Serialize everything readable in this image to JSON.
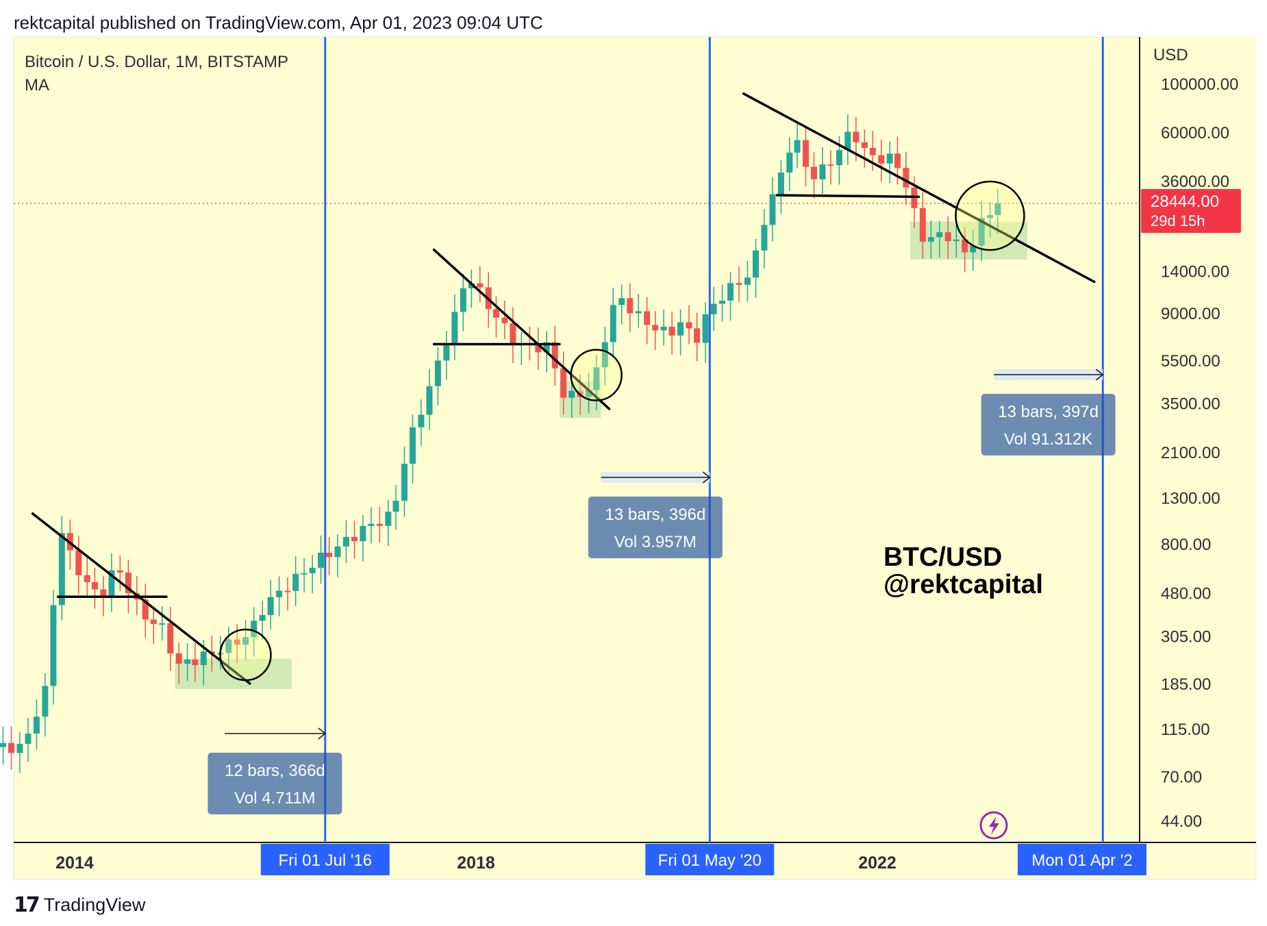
{
  "header": {
    "publish_text": "rektcapital published on TradingView.com, Apr 01, 2023 09:04 UTC"
  },
  "footer": {
    "logo_text": "17",
    "brand": "TradingView"
  },
  "colors": {
    "background": "#fffed2",
    "up": "#26a69a",
    "down": "#ef5350",
    "vline": "#2962ff",
    "range_box": "#1e4fa0",
    "price_badge": "#f23645",
    "zone": "#b9dfa4",
    "dotted": "#e45757"
  },
  "chart_data": {
    "type": "candlestick",
    "title": "Bitcoin / U.S. Dollar, 1M, BITSTAMP",
    "indicator": "MA",
    "scale": "log",
    "yunit": "USD",
    "yticks": [
      100000,
      60000,
      36000,
      14000,
      9000,
      5500,
      3500,
      2100,
      1300,
      800,
      480,
      305,
      185,
      115,
      70,
      44
    ],
    "ytick_labels": [
      "100000.00",
      "60000.00",
      "36000.00",
      "14000.00",
      "9000.00",
      "5500.00",
      "3500.00",
      "2100.00",
      "1300.00",
      "800.00",
      "480.00",
      "305.00",
      "185.00",
      "115.00",
      "70.00",
      "44.00"
    ],
    "xticks": [
      {
        "label": "2014",
        "date": "2014-01-01"
      },
      {
        "label": "2018",
        "date": "2018-01-01"
      },
      {
        "label": "2022",
        "date": "2022-01-01"
      }
    ],
    "last_price": {
      "value": 28444,
      "label": "28444.00",
      "countdown": "29d 15h"
    },
    "candles_approx_close": [
      {
        "d": "2013-04",
        "c": 95
      },
      {
        "d": "2013-07",
        "c": 95
      },
      {
        "d": "2013-08",
        "c": 125
      },
      {
        "d": "2013-10",
        "c": 190
      },
      {
        "d": "2013-11",
        "c": 1100
      },
      {
        "d": "2013-12",
        "c": 760
      },
      {
        "d": "2014-02",
        "c": 560
      },
      {
        "d": "2014-04",
        "c": 450
      },
      {
        "d": "2014-06",
        "c": 640
      },
      {
        "d": "2014-09",
        "c": 385
      },
      {
        "d": "2014-12",
        "c": 320
      },
      {
        "d": "2015-01",
        "c": 220
      },
      {
        "d": "2015-06",
        "c": 260
      },
      {
        "d": "2015-10",
        "c": 310
      },
      {
        "d": "2015-11",
        "c": 380
      },
      {
        "d": "2015-12",
        "c": 430
      },
      {
        "d": "2016-06",
        "c": 670
      },
      {
        "d": "2016-12",
        "c": 960
      },
      {
        "d": "2017-03",
        "c": 1080
      },
      {
        "d": "2017-05",
        "c": 2300
      },
      {
        "d": "2017-08",
        "c": 4700
      },
      {
        "d": "2017-11",
        "c": 10000
      },
      {
        "d": "2017-12",
        "c": 13800
      },
      {
        "d": "2018-02",
        "c": 10300
      },
      {
        "d": "2018-06",
        "c": 6400
      },
      {
        "d": "2018-10",
        "c": 6300
      },
      {
        "d": "2018-11",
        "c": 4000
      },
      {
        "d": "2018-12",
        "c": 3700
      },
      {
        "d": "2019-03",
        "c": 4100
      },
      {
        "d": "2019-05",
        "c": 8500
      },
      {
        "d": "2019-06",
        "c": 10800
      },
      {
        "d": "2019-09",
        "c": 8300
      },
      {
        "d": "2019-12",
        "c": 7200
      },
      {
        "d": "2020-02",
        "c": 8500
      },
      {
        "d": "2020-03",
        "c": 6400
      },
      {
        "d": "2020-05",
        "c": 9450
      },
      {
        "d": "2020-07",
        "c": 11300
      },
      {
        "d": "2020-10",
        "c": 13800
      },
      {
        "d": "2020-12",
        "c": 29000
      },
      {
        "d": "2021-01",
        "c": 33100
      },
      {
        "d": "2021-03",
        "c": 58800
      },
      {
        "d": "2021-05",
        "c": 37300
      },
      {
        "d": "2021-07",
        "c": 41500
      },
      {
        "d": "2021-10",
        "c": 61300
      },
      {
        "d": "2021-12",
        "c": 46200
      },
      {
        "d": "2022-03",
        "c": 45500
      },
      {
        "d": "2022-05",
        "c": 31800
      },
      {
        "d": "2022-06",
        "c": 19900
      },
      {
        "d": "2022-08",
        "c": 20000
      },
      {
        "d": "2022-10",
        "c": 20500
      },
      {
        "d": "2022-11",
        "c": 17100
      },
      {
        "d": "2022-12",
        "c": 16500
      },
      {
        "d": "2023-01",
        "c": 23100
      },
      {
        "d": "2023-02",
        "c": 23100
      },
      {
        "d": "2023-03",
        "c": 28444
      }
    ],
    "vertical_lines": [
      {
        "date": "2016-07-01",
        "label": "Fri 01 Jul '16"
      },
      {
        "date": "2020-05-01",
        "label": "Fri 01 May '20"
      },
      {
        "date": "2024-04-01",
        "label": "Mon 01 Apr '2"
      }
    ],
    "date_ranges": [
      {
        "from": "2015-07-01",
        "to": "2016-07-01",
        "bars": "12 bars, 366d",
        "vol": "Vol 4.711M"
      },
      {
        "from": "2019-04-01",
        "to": "2020-05-01",
        "bars": "13 bars, 396d",
        "vol": "Vol 3.957M"
      },
      {
        "from": "2023-03-01",
        "to": "2024-04-01",
        "bars": "13 bars, 397d",
        "vol": "Vol 91.312K"
      }
    ],
    "annotation": {
      "line1": "BTC/USD",
      "line2": "@rektcapital"
    },
    "grid": false
  }
}
